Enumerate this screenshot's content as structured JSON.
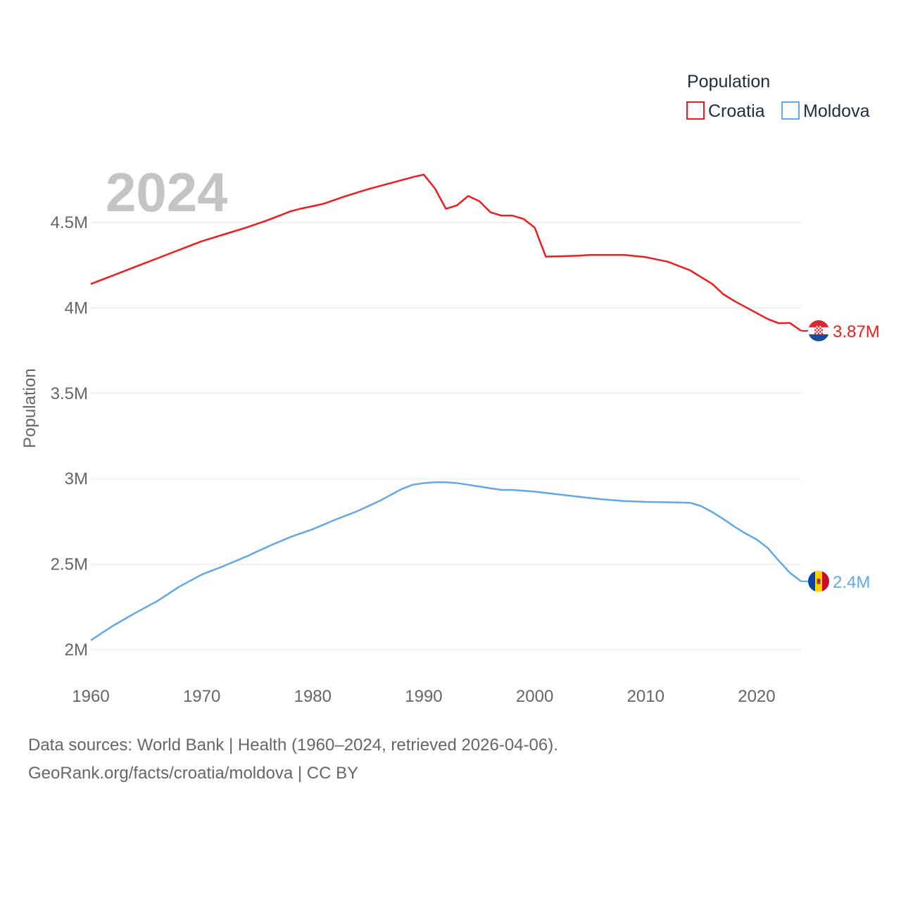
{
  "chart_data": {
    "type": "line",
    "year_label": "2024",
    "ylabel": "Population",
    "ylim": [
      2000000,
      4850000
    ],
    "xlim": [
      1960,
      2024
    ],
    "y_ticks": [
      {
        "value": 2000000,
        "label": "2M"
      },
      {
        "value": 2500000,
        "label": "2.5M"
      },
      {
        "value": 3000000,
        "label": "3M"
      },
      {
        "value": 3500000,
        "label": "3.5M"
      },
      {
        "value": 4000000,
        "label": "4M"
      },
      {
        "value": 4500000,
        "label": "4.5M"
      }
    ],
    "x_ticks": [
      1960,
      1970,
      1980,
      1990,
      2000,
      2010,
      2020
    ],
    "legend": {
      "title": "Population"
    },
    "series": [
      {
        "name": "Croatia",
        "color": "#ee1c1c",
        "end_label": "3.87M",
        "flag": "croatia-flag",
        "x": [
          1960,
          1962,
          1964,
          1966,
          1968,
          1970,
          1972,
          1974,
          1976,
          1978,
          1979,
          1980,
          1981,
          1983,
          1985,
          1987,
          1989,
          1990,
          1991,
          1992,
          1993,
          1994,
          1995,
          1996,
          1997,
          1998,
          1999,
          2000,
          2001,
          2004,
          2005,
          2008,
          2010,
          2012,
          2014,
          2016,
          2017,
          2018,
          2020,
          2021,
          2022,
          2023,
          2024
        ],
        "values": [
          4140000,
          4190000,
          4240000,
          4290000,
          4340000,
          4390000,
          4430000,
          4470000,
          4515000,
          4565000,
          4582000,
          4595000,
          4610000,
          4655000,
          4695000,
          4730000,
          4765000,
          4780000,
          4700000,
          4580000,
          4600000,
          4655000,
          4625000,
          4560000,
          4540000,
          4540000,
          4520000,
          4470000,
          4300000,
          4305000,
          4310000,
          4310000,
          4297000,
          4270000,
          4220000,
          4140000,
          4080000,
          4040000,
          3970000,
          3935000,
          3910000,
          3912000,
          3866000
        ]
      },
      {
        "name": "Moldova",
        "color": "#62a8e6",
        "end_label": "2.4M",
        "flag": "moldova-flag",
        "x": [
          1960,
          1962,
          1964,
          1966,
          1968,
          1970,
          1972,
          1974,
          1976,
          1978,
          1980,
          1982,
          1984,
          1986,
          1988,
          1989,
          1990,
          1991,
          1992,
          1993,
          1994,
          1995,
          1996,
          1997,
          1998,
          2000,
          2002,
          2004,
          2006,
          2008,
          2010,
          2012,
          2014,
          2015,
          2016,
          2017,
          2018,
          2019,
          2020,
          2021,
          2022,
          2023,
          2024
        ],
        "values": [
          2055000,
          2140000,
          2215000,
          2285000,
          2370000,
          2440000,
          2490000,
          2545000,
          2605000,
          2660000,
          2705000,
          2760000,
          2810000,
          2870000,
          2940000,
          2965000,
          2975000,
          2980000,
          2980000,
          2975000,
          2965000,
          2955000,
          2945000,
          2935000,
          2935000,
          2925000,
          2910000,
          2895000,
          2880000,
          2870000,
          2865000,
          2863000,
          2860000,
          2840000,
          2805000,
          2765000,
          2720000,
          2680000,
          2645000,
          2595000,
          2520000,
          2450000,
          2400000
        ]
      }
    ]
  },
  "footer": {
    "line1": "Data sources: World Bank | Health (1960–2024, retrieved 2026-04-06).",
    "line2": "GeoRank.org/facts/croatia/moldova | CC BY"
  }
}
